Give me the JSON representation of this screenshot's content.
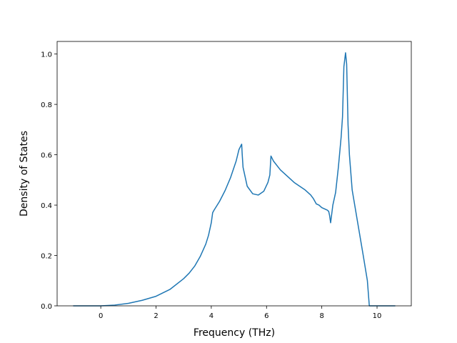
{
  "chart_data": {
    "type": "line",
    "title": "",
    "xlabel": "Frequency (THz)",
    "ylabel": "Density of States",
    "xlim": [
      -1.58,
      11.24
    ],
    "ylim": [
      0,
      1.05
    ],
    "grid": false,
    "legend": "none",
    "line_color": "#1f77b4",
    "x_ticks": [
      0,
      2,
      4,
      6,
      8,
      10
    ],
    "x_tick_labels": [
      "0",
      "2",
      "4",
      "6",
      "8",
      "10"
    ],
    "y_ticks": [
      0.0,
      0.2,
      0.4,
      0.6,
      0.8,
      1.0
    ],
    "y_tick_labels": [
      "0.0",
      "0.2",
      "0.4",
      "0.6",
      "0.8",
      "1.0"
    ],
    "series": [
      {
        "x": [
          -1.0,
          0.0,
          0.5,
          1.0,
          1.5,
          2.0,
          2.5,
          3.0,
          3.2,
          3.4,
          3.6,
          3.8,
          3.9,
          4.0,
          4.05,
          4.1,
          4.3,
          4.5,
          4.7,
          4.9,
          5.0,
          5.1,
          5.12,
          5.15,
          5.3,
          5.5,
          5.7,
          5.9,
          6.05,
          6.12,
          6.16,
          6.25,
          6.5,
          7.0,
          7.4,
          7.6,
          7.7,
          7.8,
          7.9,
          8.0,
          8.1,
          8.2,
          8.25,
          8.28,
          8.32,
          8.4,
          8.5,
          8.6,
          8.7,
          8.75,
          8.8,
          8.86,
          8.9,
          8.95,
          9.0,
          9.1,
          9.3,
          9.5,
          9.65,
          9.72,
          9.8,
          10.0,
          10.5,
          10.66
        ],
        "y": [
          0.0,
          0.0,
          0.003,
          0.01,
          0.022,
          0.038,
          0.065,
          0.108,
          0.13,
          0.158,
          0.196,
          0.245,
          0.28,
          0.33,
          0.37,
          0.38,
          0.415,
          0.458,
          0.51,
          0.575,
          0.62,
          0.642,
          0.6,
          0.55,
          0.475,
          0.445,
          0.44,
          0.455,
          0.49,
          0.52,
          0.595,
          0.575,
          0.54,
          0.49,
          0.46,
          0.44,
          0.425,
          0.405,
          0.4,
          0.39,
          0.385,
          0.38,
          0.375,
          0.36,
          0.33,
          0.4,
          0.45,
          0.55,
          0.67,
          0.75,
          0.95,
          1.005,
          0.96,
          0.72,
          0.6,
          0.46,
          0.33,
          0.2,
          0.1,
          0.0,
          0.0,
          0.0,
          0.0,
          0.0
        ]
      }
    ]
  }
}
